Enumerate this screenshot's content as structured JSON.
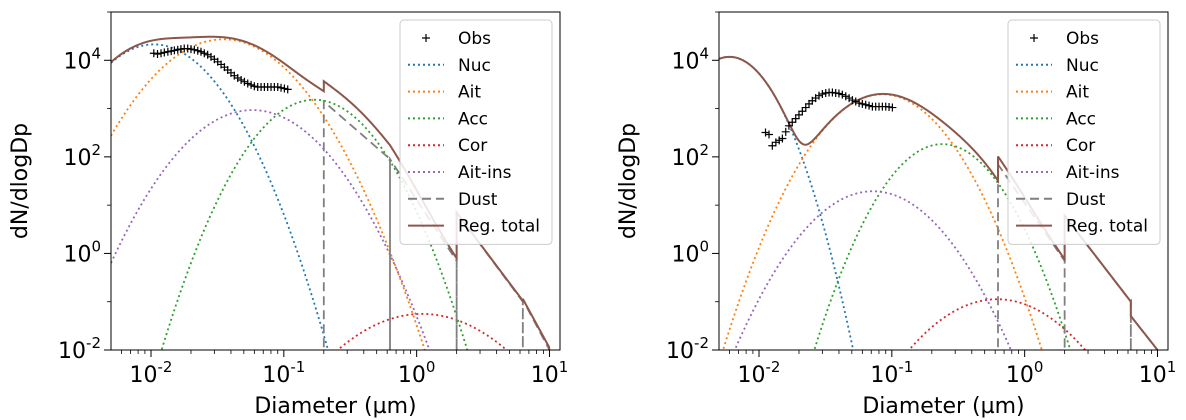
{
  "chart_data": [
    {
      "type": "line",
      "xlabel": "Diameter (µm)",
      "ylabel": "dN/dlogDp",
      "xscale": "log",
      "yscale": "log",
      "xlim": [
        0.005,
        12
      ],
      "ylim": [
        0.01,
        100000
      ],
      "xticks": [
        "10^-2",
        "10^-1",
        "10^0",
        "10^1"
      ],
      "yticks": [
        "10^-2",
        "10^0",
        "10^2",
        "10^4"
      ],
      "legend": {
        "placement": "top-right",
        "entries": [
          "Obs",
          "Nuc",
          "Ait",
          "Acc",
          "Cor",
          "Ait-ins",
          "Dust",
          "Reg. total"
        ]
      },
      "obs": {
        "x": [
          0.0105,
          0.0112,
          0.0119,
          0.0126,
          0.0134,
          0.0142,
          0.015,
          0.0159,
          0.0168,
          0.0178,
          0.0189,
          0.02,
          0.0212,
          0.0225,
          0.0238,
          0.0252,
          0.0267,
          0.0283,
          0.03,
          0.0318,
          0.0337,
          0.0357,
          0.0378,
          0.04,
          0.0424,
          0.045,
          0.0477,
          0.0505,
          0.0535,
          0.0567,
          0.06,
          0.0636,
          0.0674,
          0.0714,
          0.0756,
          0.0801,
          0.0849,
          0.09,
          0.0953,
          0.101,
          0.107
        ],
        "y": [
          14000,
          13500,
          14000,
          14500,
          15000,
          15500,
          16000,
          16500,
          17000,
          17500,
          17500,
          17000,
          16500,
          15800,
          15000,
          14000,
          13000,
          11800,
          10500,
          9300,
          8200,
          7200,
          6300,
          5500,
          4800,
          4300,
          3900,
          3600,
          3300,
          3100,
          2900,
          2800,
          2800,
          2800,
          2800,
          2800,
          2800,
          2800,
          2700,
          2600,
          2500
        ]
      },
      "series": [
        {
          "name": "Nuc",
          "color": "#1f77b4",
          "style": "dotted",
          "kind": "lognormal",
          "N": 13000,
          "dg": 0.0105,
          "sigma": 1.75
        },
        {
          "name": "Ait",
          "color": "#ff7f0e",
          "style": "dotted",
          "kind": "lognormal",
          "N": 19000,
          "dg": 0.035,
          "sigma": 1.9
        },
        {
          "name": "Acc",
          "color": "#2ca02c",
          "style": "dotted",
          "kind": "lognormal",
          "N": 900,
          "dg": 0.17,
          "sigma": 1.72
        },
        {
          "name": "Cor",
          "color": "#d62728",
          "style": "dotted",
          "kind": "lognormal",
          "N": 0.048,
          "dg": 1.1,
          "sigma": 2.2
        },
        {
          "name": "Ait-ins",
          "color": "#9467bd",
          "style": "dotted",
          "kind": "lognormal",
          "N": 650,
          "dg": 0.058,
          "sigma": 1.9
        },
        {
          "name": "Dust",
          "color": "#7f7f7f",
          "style": "dashed",
          "kind": "sectional",
          "bins": [
            [
              0.2,
              0.63,
              1400,
              90
            ],
            [
              0.63,
              2.0,
              90,
              0.7
            ],
            [
              2.0,
              6.3,
              7,
              0.1
            ],
            [
              6.3,
              10,
              0.11,
              0.01
            ]
          ]
        },
        {
          "name": "Reg. total",
          "color": "#8c564b",
          "style": "solid",
          "kind": "total"
        }
      ]
    },
    {
      "type": "line",
      "xlabel": "Diameter (µm)",
      "ylabel": "dN/dlogDp",
      "xscale": "log",
      "yscale": "log",
      "xlim": [
        0.005,
        12
      ],
      "ylim": [
        0.01,
        100000
      ],
      "xticks": [
        "10^-2",
        "10^-1",
        "10^0",
        "10^1"
      ],
      "yticks": [
        "10^-2",
        "10^0",
        "10^2",
        "10^4"
      ],
      "legend": {
        "placement": "top-right",
        "entries": [
          "Obs",
          "Nuc",
          "Ait",
          "Acc",
          "Cor",
          "Ait-ins",
          "Dust",
          "Reg. total"
        ]
      },
      "obs": {
        "x": [
          0.0112,
          0.0119,
          0.0126,
          0.0134,
          0.0142,
          0.015,
          0.0159,
          0.0168,
          0.0178,
          0.0189,
          0.02,
          0.0212,
          0.0225,
          0.0238,
          0.0252,
          0.0267,
          0.0283,
          0.03,
          0.0318,
          0.0337,
          0.0357,
          0.0378,
          0.04,
          0.0424,
          0.045,
          0.0477,
          0.0505,
          0.0535,
          0.0567,
          0.06,
          0.0636,
          0.0674,
          0.0714,
          0.0756,
          0.0801,
          0.0849,
          0.09,
          0.0953,
          0.101
        ],
        "y": [
          320,
          290,
          170,
          200,
          220,
          240,
          330,
          440,
          520,
          620,
          740,
          880,
          1050,
          1250,
          1450,
          1650,
          1850,
          2000,
          2100,
          2150,
          2150,
          2100,
          2050,
          1950,
          1800,
          1650,
          1500,
          1400,
          1300,
          1250,
          1200,
          1150,
          1100,
          1100,
          1100,
          1100,
          1100,
          1080,
          1050
        ]
      },
      "series": [
        {
          "name": "Nuc",
          "color": "#1f77b4",
          "style": "dotted",
          "kind": "lognormal",
          "N": 5200,
          "dg": 0.006,
          "sigma": 1.5
        },
        {
          "name": "Ait",
          "color": "#ff7f0e",
          "style": "dotted",
          "kind": "lognormal",
          "N": 1200,
          "dg": 0.085,
          "sigma": 1.75
        },
        {
          "name": "Acc",
          "color": "#2ca02c",
          "style": "dotted",
          "kind": "lognormal",
          "N": 100,
          "dg": 0.24,
          "sigma": 1.65
        },
        {
          "name": "Cor",
          "color": "#d62728",
          "style": "dotted",
          "kind": "lognormal",
          "N": 0.085,
          "dg": 0.62,
          "sigma": 2.0
        },
        {
          "name": "Ait-ins",
          "color": "#9467bd",
          "style": "dotted",
          "kind": "lognormal",
          "N": 13,
          "dg": 0.072,
          "sigma": 1.85
        },
        {
          "name": "Dust",
          "color": "#7f7f7f",
          "style": "dashed",
          "kind": "sectional",
          "bins": [
            [
              0.63,
              2.0,
              70,
              0.7
            ],
            [
              2.0,
              6.3,
              6,
              0.1
            ],
            [
              6.3,
              10,
              0.05,
              0.01
            ]
          ]
        },
        {
          "name": "Reg. total",
          "color": "#8c564b",
          "style": "solid",
          "kind": "total"
        }
      ]
    }
  ]
}
